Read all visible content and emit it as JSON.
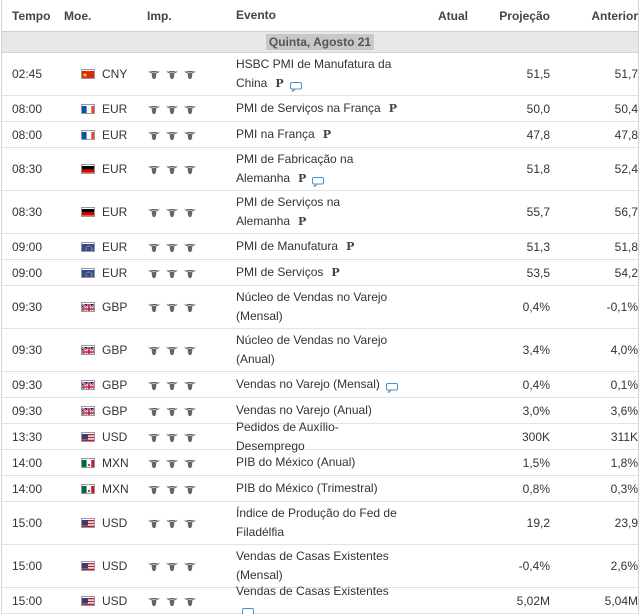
{
  "headers": {
    "time": "Tempo",
    "currency": "Moe.",
    "importance": "Imp.",
    "event": "Evento",
    "actual": "Atual",
    "forecast": "Projeção",
    "previous": "Anterior"
  },
  "day_label": "Quinta, Agosto 21",
  "colors": {
    "bull": "#666666",
    "bubble": "#4a90c8",
    "header_text": "#444444",
    "day_bg": "#e8e8e8"
  },
  "rows": [
    {
      "time": "02:45",
      "flag": "cn",
      "currency": "CNY",
      "importance": 3,
      "event": "HSBC PMI de Manufatura da China",
      "preliminary": "P",
      "has_comment": true,
      "actual": "",
      "forecast": "51,5",
      "previous": "51,7"
    },
    {
      "time": "08:00",
      "flag": "fr",
      "currency": "EUR",
      "importance": 3,
      "event": "PMI de Serviços na França",
      "preliminary": "P",
      "has_comment": false,
      "actual": "",
      "forecast": "50,0",
      "previous": "50,4"
    },
    {
      "time": "08:00",
      "flag": "fr",
      "currency": "EUR",
      "importance": 3,
      "event": "PMI na França",
      "preliminary": "P",
      "has_comment": false,
      "actual": "",
      "forecast": "47,8",
      "previous": "47,8"
    },
    {
      "time": "08:30",
      "flag": "de",
      "currency": "EUR",
      "importance": 3,
      "event": "PMI de Fabricação na Alemanha",
      "preliminary": "P",
      "has_comment": true,
      "actual": "",
      "forecast": "51,8",
      "previous": "52,4"
    },
    {
      "time": "08:30",
      "flag": "de",
      "currency": "EUR",
      "importance": 3,
      "event": "PMI de Serviços na Alemanha",
      "preliminary": "P",
      "has_comment": false,
      "actual": "",
      "forecast": "55,7",
      "previous": "56,7"
    },
    {
      "time": "09:00",
      "flag": "eu",
      "currency": "EUR",
      "importance": 3,
      "event": "PMI de Manufatura",
      "preliminary": "P",
      "has_comment": false,
      "actual": "",
      "forecast": "51,3",
      "previous": "51,8"
    },
    {
      "time": "09:00",
      "flag": "eu",
      "currency": "EUR",
      "importance": 3,
      "event": "PMI de Serviços",
      "preliminary": "P",
      "has_comment": false,
      "actual": "",
      "forecast": "53,5",
      "previous": "54,2"
    },
    {
      "time": "09:30",
      "flag": "gb",
      "currency": "GBP",
      "importance": 3,
      "event": "Núcleo de Vendas no Varejo (Mensal)",
      "preliminary": "",
      "has_comment": false,
      "actual": "",
      "forecast": "0,4%",
      "previous": "-0,1%"
    },
    {
      "time": "09:30",
      "flag": "gb",
      "currency": "GBP",
      "importance": 3,
      "event": "Núcleo de Vendas no Varejo (Anual)",
      "preliminary": "",
      "has_comment": false,
      "actual": "",
      "forecast": "3,4%",
      "previous": "4,0%"
    },
    {
      "time": "09:30",
      "flag": "gb",
      "currency": "GBP",
      "importance": 3,
      "event": "Vendas no Varejo (Mensal)",
      "preliminary": "",
      "has_comment": true,
      "actual": "",
      "forecast": "0,4%",
      "previous": "0,1%"
    },
    {
      "time": "09:30",
      "flag": "gb",
      "currency": "GBP",
      "importance": 3,
      "event": "Vendas no Varejo (Anual)",
      "preliminary": "",
      "has_comment": false,
      "actual": "",
      "forecast": "3,0%",
      "previous": "3,6%"
    },
    {
      "time": "13:30",
      "flag": "us",
      "currency": "USD",
      "importance": 3,
      "event": "Pedidos de Auxílio-Desemprego",
      "preliminary": "",
      "has_comment": false,
      "actual": "",
      "forecast": "300K",
      "previous": "311K"
    },
    {
      "time": "14:00",
      "flag": "mx",
      "currency": "MXN",
      "importance": 3,
      "event": "PIB do México (Anual)",
      "preliminary": "",
      "has_comment": false,
      "actual": "",
      "forecast": "1,5%",
      "previous": "1,8%"
    },
    {
      "time": "14:00",
      "flag": "mx",
      "currency": "MXN",
      "importance": 3,
      "event": "PIB do México (Trimestral)",
      "preliminary": "",
      "has_comment": false,
      "actual": "",
      "forecast": "0,8%",
      "previous": "0,3%"
    },
    {
      "time": "15:00",
      "flag": "us",
      "currency": "USD",
      "importance": 3,
      "event": "Índice de Produção do Fed de Filadélfia",
      "preliminary": "",
      "has_comment": false,
      "actual": "",
      "forecast": "19,2",
      "previous": "23,9"
    },
    {
      "time": "15:00",
      "flag": "us",
      "currency": "USD",
      "importance": 3,
      "event": "Vendas de Casas Existentes (Mensal)",
      "preliminary": "",
      "has_comment": false,
      "actual": "",
      "forecast": "-0,4%",
      "previous": "2,6%"
    },
    {
      "time": "15:00",
      "flag": "us",
      "currency": "USD",
      "importance": 3,
      "event": "Vendas de Casas Existentes",
      "preliminary": "",
      "has_comment": true,
      "actual": "",
      "forecast": "5,02M",
      "previous": "5,04M"
    }
  ]
}
